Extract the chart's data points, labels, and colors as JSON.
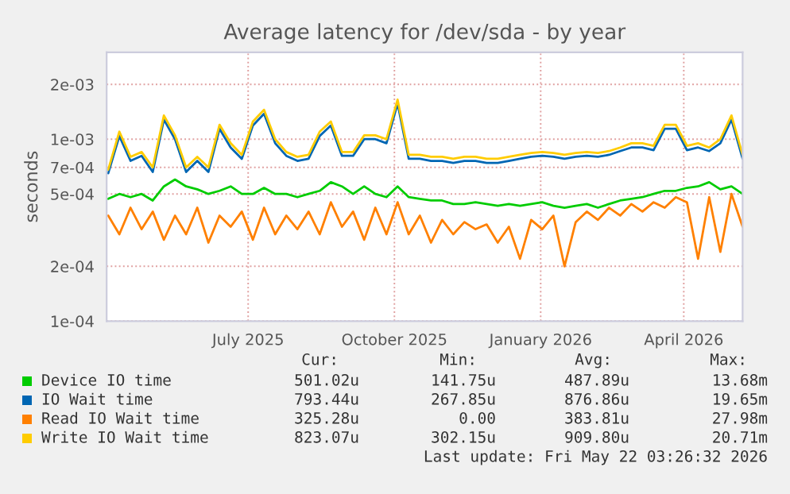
{
  "chart_data": {
    "type": "line",
    "title": "Average latency for /dev/sda - by year",
    "ylabel": "seconds",
    "x": [
      "2025-04-18",
      "2025-04-25",
      "2025-05-02",
      "2025-05-09",
      "2025-05-16",
      "2025-05-23",
      "2025-05-30",
      "2025-06-06",
      "2025-06-13",
      "2025-06-20",
      "2025-06-27",
      "2025-07-04",
      "2025-07-11",
      "2025-07-18",
      "2025-07-25",
      "2025-08-01",
      "2025-08-08",
      "2025-08-15",
      "2025-08-22",
      "2025-08-29",
      "2025-09-05",
      "2025-09-12",
      "2025-09-19",
      "2025-09-26",
      "2025-10-03",
      "2025-10-10",
      "2025-10-17",
      "2025-10-24",
      "2025-10-31",
      "2025-11-07",
      "2025-11-14",
      "2025-11-21",
      "2025-11-28",
      "2025-12-05",
      "2025-12-12",
      "2025-12-19",
      "2025-12-26",
      "2026-01-02",
      "2026-01-09",
      "2026-01-16",
      "2026-01-23",
      "2026-01-30",
      "2026-02-06",
      "2026-02-13",
      "2026-02-20",
      "2026-02-27",
      "2026-03-06",
      "2026-03-13",
      "2026-03-20",
      "2026-03-27",
      "2026-04-03",
      "2026-04-10",
      "2026-04-17",
      "2026-04-24",
      "2026-05-01",
      "2026-05-08",
      "2026-05-15",
      "2026-05-22"
    ],
    "series": [
      {
        "name": "Device IO time",
        "color": "#00cc00",
        "values": [
          0.00047,
          0.0005,
          0.00048,
          0.0005,
          0.00046,
          0.00055,
          0.0006,
          0.00055,
          0.00053,
          0.0005,
          0.00052,
          0.00055,
          0.0005,
          0.0005,
          0.00054,
          0.0005,
          0.0005,
          0.00048,
          0.0005,
          0.00052,
          0.00058,
          0.00055,
          0.0005,
          0.00055,
          0.0005,
          0.00048,
          0.00055,
          0.00048,
          0.00047,
          0.00046,
          0.00046,
          0.00044,
          0.00044,
          0.00045,
          0.00044,
          0.00043,
          0.00044,
          0.00043,
          0.00044,
          0.00045,
          0.00043,
          0.00042,
          0.00043,
          0.00044,
          0.00042,
          0.00044,
          0.00046,
          0.00047,
          0.00048,
          0.0005,
          0.00052,
          0.00052,
          0.00054,
          0.00055,
          0.00058,
          0.00053,
          0.00055,
          0.0005
        ]
      },
      {
        "name": "IO Wait time",
        "color": "#0066b3",
        "values": [
          0.00065,
          0.00104,
          0.00076,
          0.00081,
          0.00066,
          0.00128,
          0.001,
          0.00066,
          0.00076,
          0.00066,
          0.00114,
          0.0009,
          0.00078,
          0.00119,
          0.00138,
          0.00095,
          0.00081,
          0.00076,
          0.00078,
          0.00104,
          0.00119,
          0.00081,
          0.00081,
          0.001,
          0.001,
          0.00095,
          0.00157,
          0.00078,
          0.00078,
          0.00076,
          0.00076,
          0.00074,
          0.00076,
          0.00076,
          0.00074,
          0.00074,
          0.00076,
          0.00078,
          0.0008,
          0.00081,
          0.0008,
          0.00078,
          0.0008,
          0.00081,
          0.0008,
          0.00082,
          0.00086,
          0.0009,
          0.0009,
          0.00087,
          0.00114,
          0.00114,
          0.00087,
          0.0009,
          0.00086,
          0.00095,
          0.00128,
          0.00078
        ]
      },
      {
        "name": "Read IO Wait time",
        "color": "#ff8000",
        "values": [
          0.00038,
          0.0003,
          0.00042,
          0.00032,
          0.0004,
          0.00028,
          0.00038,
          0.0003,
          0.00042,
          0.00027,
          0.00038,
          0.00033,
          0.0004,
          0.00028,
          0.00042,
          0.0003,
          0.00038,
          0.00032,
          0.0004,
          0.0003,
          0.00045,
          0.00033,
          0.0004,
          0.00028,
          0.00042,
          0.0003,
          0.00045,
          0.0003,
          0.00038,
          0.00027,
          0.00036,
          0.0003,
          0.00035,
          0.00032,
          0.00034,
          0.00027,
          0.00033,
          0.00022,
          0.00036,
          0.00032,
          0.00038,
          0.0002,
          0.00035,
          0.0004,
          0.00036,
          0.00042,
          0.00038,
          0.00044,
          0.0004,
          0.00045,
          0.00042,
          0.00048,
          0.00045,
          0.00022,
          0.00048,
          0.00024,
          0.0005,
          0.00033
        ]
      },
      {
        "name": "Write IO Wait time",
        "color": "#ffcc00",
        "values": [
          0.00068,
          0.0011,
          0.0008,
          0.00085,
          0.0007,
          0.00135,
          0.00105,
          0.0007,
          0.0008,
          0.0007,
          0.0012,
          0.00095,
          0.00082,
          0.00125,
          0.00145,
          0.001,
          0.00085,
          0.0008,
          0.00082,
          0.0011,
          0.00125,
          0.00085,
          0.00085,
          0.00105,
          0.00105,
          0.001,
          0.00165,
          0.00082,
          0.00082,
          0.0008,
          0.0008,
          0.00078,
          0.0008,
          0.0008,
          0.00078,
          0.00078,
          0.0008,
          0.00082,
          0.00084,
          0.00085,
          0.00084,
          0.00082,
          0.00084,
          0.00085,
          0.00084,
          0.00086,
          0.0009,
          0.00095,
          0.00095,
          0.00092,
          0.0012,
          0.0012,
          0.00092,
          0.00095,
          0.0009,
          0.001,
          0.00135,
          0.00082
        ]
      }
    ],
    "log": true,
    "ylim": [
      0.0001,
      0.003
    ],
    "yticks": [
      {
        "value": 0.0001,
        "label": "1e-04"
      },
      {
        "value": 0.0002,
        "label": "2e-04"
      },
      {
        "value": 0.0005,
        "label": "5e-04"
      },
      {
        "value": 0.0007,
        "label": "7e-04"
      },
      {
        "value": 0.001,
        "label": "1e-03"
      },
      {
        "value": 0.002,
        "label": "2e-03"
      }
    ],
    "xlim": [
      "2025-04-17",
      "2026-05-22"
    ],
    "xticks": [
      {
        "value": "2025-07-15",
        "label": "July 2025"
      },
      {
        "value": "2025-10-15",
        "label": "October 2025"
      },
      {
        "value": "2026-01-15",
        "label": "January 2026"
      },
      {
        "value": "2026-04-15",
        "label": "April 2026"
      }
    ],
    "grid": true,
    "legend": "bottom",
    "marker": "none",
    "line_style": "solid",
    "annotations": [
      "Cur:",
      "Min:",
      "Avg:",
      "Max:",
      "501.02u",
      "141.75u",
      "487.89u",
      "13.68m",
      "793.44u",
      "267.85u",
      "876.86u",
      "19.65m",
      "325.28u",
      "0.00",
      "383.81u",
      "27.98m",
      "823.07u",
      "302.15u",
      "909.80u",
      "20.71m",
      "Last update: Fri May 22 03:26:32 2026"
    ]
  }
}
